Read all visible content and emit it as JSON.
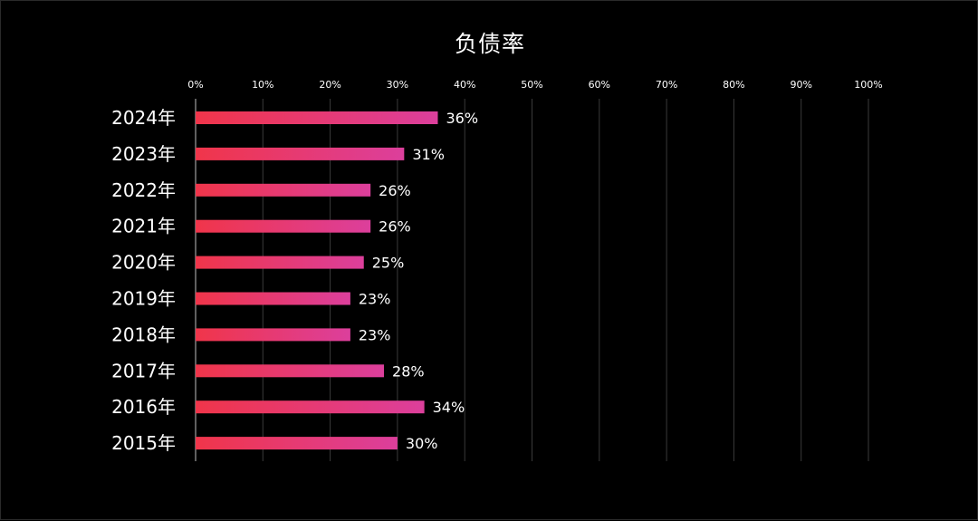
{
  "chart_data": {
    "type": "bar",
    "orientation": "horizontal",
    "title": "负债率",
    "xlabel": "",
    "ylabel": "",
    "categories": [
      "2024年",
      "2023年",
      "2022年",
      "2021年",
      "2020年",
      "2019年",
      "2018年",
      "2017年",
      "2016年",
      "2015年"
    ],
    "values": [
      36,
      31,
      26,
      26,
      25,
      23,
      23,
      28,
      34,
      30
    ],
    "data_labels": [
      "36%",
      "31%",
      "26%",
      "26%",
      "25%",
      "23%",
      "23%",
      "28%",
      "34%",
      "30%"
    ],
    "xlim": [
      0,
      100
    ],
    "x_ticks": [
      0,
      10,
      20,
      30,
      40,
      50,
      60,
      70,
      80,
      90,
      100
    ],
    "x_tick_labels": [
      "0%",
      "10%",
      "20%",
      "30%",
      "40%",
      "50%",
      "60%",
      "70%",
      "80%",
      "90%",
      "100%"
    ],
    "x_axis_position": "top",
    "grid": true,
    "legend": "none",
    "colors": {
      "background": "#000000",
      "bar_start": "#f0354a",
      "bar_end": "#dc3f9c",
      "grid": "#3a3a3a",
      "axis": "#bfbfbf",
      "text": "#ffffff"
    }
  }
}
